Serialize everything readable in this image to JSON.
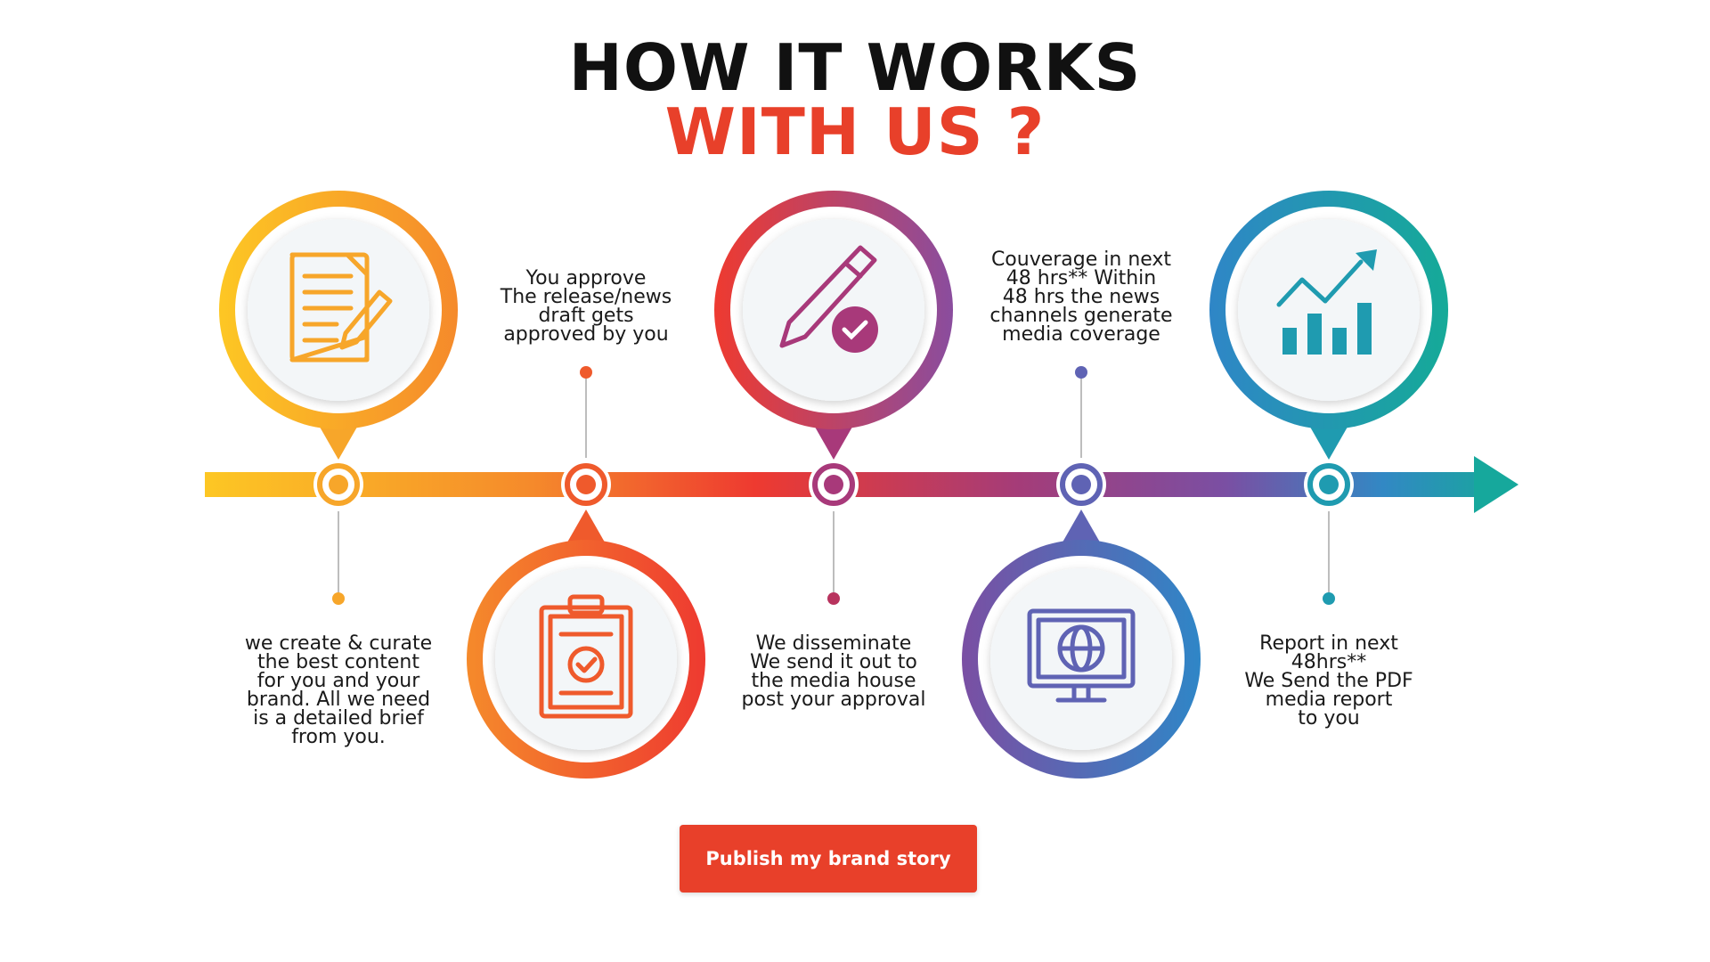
{
  "header": {
    "title_line1": "HOW IT WORKS",
    "title_line2": "WITH US ?"
  },
  "colors": {
    "accent": "#e8402a",
    "yellow": "#fdc724",
    "orange": "#f47b28",
    "red": "#e8322f",
    "purple": "#7b4ea1",
    "blue": "#2f86c7",
    "teal": "#16a89c"
  },
  "steps": [
    {
      "icon": "document-pencil-icon",
      "position": "top-circle",
      "lines": [
        "we create & curate",
        "the best content",
        "for you and your",
        "brand. All we need",
        "is a detailed brief",
        "from you."
      ]
    },
    {
      "icon": "clipboard-check-icon",
      "position": "bottom-circle",
      "lines": [
        "You approve",
        "The release/news",
        "draft gets",
        "approved by you"
      ]
    },
    {
      "icon": "pencil-check-icon",
      "position": "top-circle",
      "lines": [
        "We disseminate",
        "We send it out to",
        "the media house",
        "post your approval"
      ]
    },
    {
      "icon": "monitor-globe-icon",
      "position": "bottom-circle",
      "lines": [
        "Couverage in next",
        "48 hrs** Within",
        "48 hrs the news",
        "channels generate",
        "media coverage"
      ]
    },
    {
      "icon": "growth-chart-icon",
      "position": "top-circle",
      "lines": [
        "Report in next",
        "48hrs**",
        "We Send the PDF",
        "media report",
        "to you"
      ]
    }
  ],
  "cta": {
    "label": "Publish my brand story"
  }
}
